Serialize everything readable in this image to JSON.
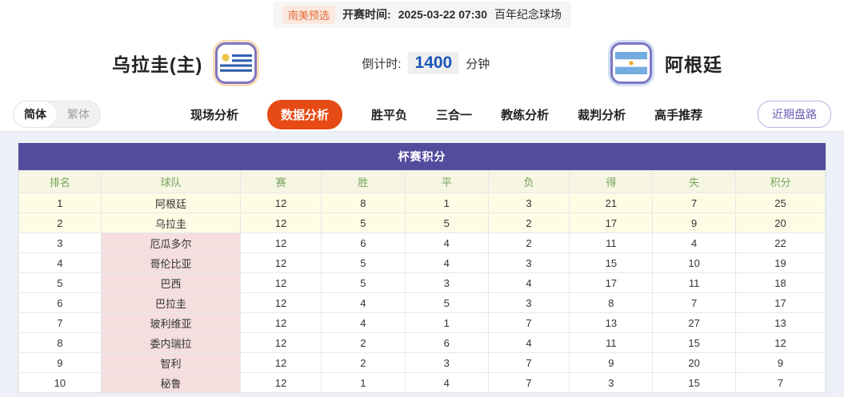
{
  "topbar": {
    "league_badge": "南美预选",
    "kickoff_label": "开赛时间:",
    "kickoff_time": "2025-03-22 07:30",
    "venue": "百年纪念球场"
  },
  "header": {
    "home_team": "乌拉圭(主)",
    "away_team": "阿根廷",
    "countdown_label": "倒计时:",
    "countdown_value": "1400",
    "countdown_unit": "分钟"
  },
  "nav": {
    "lang_toggle": {
      "simplified": "简体",
      "traditional": "繁体",
      "selected": "简体"
    },
    "tabs": [
      {
        "label": "现场分析",
        "active": false
      },
      {
        "label": "数据分析",
        "active": true
      },
      {
        "label": "胜平负",
        "active": false
      },
      {
        "label": "三合一",
        "active": false
      },
      {
        "label": "教练分析",
        "active": false
      },
      {
        "label": "裁判分析",
        "active": false
      },
      {
        "label": "高手推荐",
        "active": false
      }
    ],
    "recent_button": "近期盘路"
  },
  "standings": {
    "title": "杯赛积分",
    "columns": [
      "排名",
      "球队",
      "赛",
      "胜",
      "平",
      "负",
      "得",
      "失",
      "积分"
    ],
    "rows": [
      {
        "rank": "1",
        "team": "阿根廷",
        "values": [
          "12",
          "8",
          "1",
          "3",
          "21",
          "7",
          "25"
        ],
        "highlight": true
      },
      {
        "rank": "2",
        "team": "乌拉圭",
        "values": [
          "12",
          "5",
          "5",
          "2",
          "17",
          "9",
          "20"
        ],
        "highlight": true
      },
      {
        "rank": "3",
        "team": "厄瓜多尔",
        "values": [
          "12",
          "6",
          "4",
          "2",
          "11",
          "4",
          "22"
        ],
        "highlight": false
      },
      {
        "rank": "4",
        "team": "哥伦比亚",
        "values": [
          "12",
          "5",
          "4",
          "3",
          "15",
          "10",
          "19"
        ],
        "highlight": false
      },
      {
        "rank": "5",
        "team": "巴西",
        "values": [
          "12",
          "5",
          "3",
          "4",
          "17",
          "11",
          "18"
        ],
        "highlight": false
      },
      {
        "rank": "6",
        "team": "巴拉圭",
        "values": [
          "12",
          "4",
          "5",
          "3",
          "8",
          "7",
          "17"
        ],
        "highlight": false
      },
      {
        "rank": "7",
        "team": "玻利维亚",
        "values": [
          "12",
          "4",
          "1",
          "7",
          "13",
          "27",
          "13"
        ],
        "highlight": false
      },
      {
        "rank": "8",
        "team": "委内瑞拉",
        "values": [
          "12",
          "2",
          "6",
          "4",
          "11",
          "15",
          "12"
        ],
        "highlight": false
      },
      {
        "rank": "9",
        "team": "智利",
        "values": [
          "12",
          "2",
          "3",
          "7",
          "9",
          "20",
          "9"
        ],
        "highlight": false
      },
      {
        "rank": "10",
        "team": "秘鲁",
        "values": [
          "12",
          "1",
          "4",
          "7",
          "3",
          "15",
          "7"
        ],
        "highlight": false
      }
    ]
  },
  "colors": {
    "accent_orange": "#e64a15",
    "accent_purple": "#544b9d",
    "countdown_blue": "#1a56b8",
    "badge_orange": "#e2693a",
    "header_green": "#76a35b",
    "row_highlight": "#fdfce5",
    "team_cell_pink": "#f4dede",
    "content_bg": "#edf1f7"
  },
  "icons": {
    "home_flag": "uruguay-flag",
    "away_flag": "argentina-flag"
  }
}
